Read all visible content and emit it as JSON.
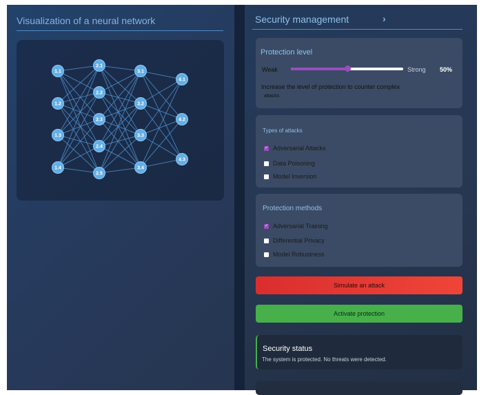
{
  "left": {
    "title": "Visualization of a neural network",
    "layers": [
      [
        "1.1",
        "1.2",
        "1.3",
        "1.4"
      ],
      [
        "2.1",
        "2.2",
        "2.3",
        "2.4",
        "2.5"
      ],
      [
        "3.1",
        "3.2",
        "3.3",
        "3.4"
      ],
      [
        "4.1",
        "4.2",
        "4.3"
      ]
    ]
  },
  "right": {
    "title": "Security management",
    "title_icon": "chevron-right-icon",
    "protection": {
      "title": "Protection level",
      "weak": "Weak",
      "strong": "Strong",
      "value_label": "50%",
      "value": 50,
      "hint": "Increase the level of protection to counter complex",
      "hint2": "attacks"
    },
    "attacks": {
      "title": "Types of attacks",
      "items": [
        {
          "label": "Adversarial Attacks",
          "checked": true
        },
        {
          "label": "Data Poisoning",
          "checked": false
        },
        {
          "label": "Model Inversion",
          "checked": false
        }
      ]
    },
    "methods": {
      "title": "Protection methods",
      "items": [
        {
          "label": "Adversarial Training",
          "checked": true
        },
        {
          "label": "Differential Privacy",
          "checked": false
        },
        {
          "label": "Model Robustness",
          "checked": false
        }
      ]
    },
    "simulate_label": "Simulate an attack",
    "activate_label": "Activate protection",
    "status": {
      "title": "Security status",
      "text": "The system is protected. No threats were detected."
    },
    "colors": {
      "accent": "#9b4cc0",
      "danger": "#e63935",
      "success": "#47b04b"
    }
  }
}
